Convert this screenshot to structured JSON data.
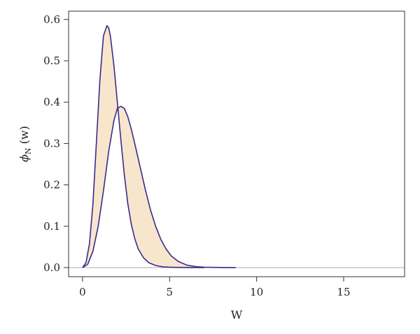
{
  "chart_data": {
    "type": "area",
    "xlabel": "W",
    "ylabel": {
      "main": "ϕ",
      "sub": "N",
      "rest": " (w)"
    },
    "xlim": [
      -0.8,
      18.5
    ],
    "ylim": [
      -0.022,
      0.62
    ],
    "x_ticks": [
      0,
      5,
      10,
      15
    ],
    "y_ticks": [
      0.0,
      0.1,
      0.2,
      0.3,
      0.4,
      0.5,
      0.6
    ],
    "y_tick_labels": [
      "0.0",
      "0.1",
      "0.2",
      "0.3",
      "0.4",
      "0.5",
      "0.6"
    ],
    "baseline": 0,
    "grid": false,
    "colors": {
      "line": "#3b2a8c",
      "fill": "#f8e6cc",
      "baseline": "#bbbbbb",
      "axis": "#333333"
    },
    "series": [
      {
        "x": [
          0,
          0.2,
          0.4,
          0.6,
          0.8,
          1.0,
          1.2,
          1.4,
          1.5,
          1.6,
          1.8,
          2.0,
          2.2,
          2.4,
          2.6,
          2.8,
          3.0,
          3.2,
          3.5,
          3.8,
          4.2,
          4.6,
          5.0,
          5.5,
          6.0,
          7.0
        ],
        "y": [
          0,
          0.012,
          0.058,
          0.155,
          0.305,
          0.455,
          0.56,
          0.585,
          0.58,
          0.56,
          0.49,
          0.4,
          0.31,
          0.225,
          0.155,
          0.105,
          0.07,
          0.045,
          0.024,
          0.012,
          0.005,
          0.002,
          0.001,
          0.0005,
          0.0002,
          0
        ]
      },
      {
        "x": [
          0,
          0.3,
          0.6,
          0.9,
          1.2,
          1.5,
          1.8,
          2.0,
          2.2,
          2.4,
          2.6,
          2.8,
          3.0,
          3.3,
          3.6,
          3.9,
          4.2,
          4.5,
          4.8,
          5.1,
          5.5,
          6.0,
          6.5,
          7.0,
          8.0,
          8.8
        ],
        "y": [
          0,
          0.008,
          0.04,
          0.1,
          0.185,
          0.28,
          0.355,
          0.385,
          0.39,
          0.385,
          0.365,
          0.335,
          0.3,
          0.245,
          0.19,
          0.14,
          0.1,
          0.068,
          0.045,
          0.028,
          0.015,
          0.006,
          0.0025,
          0.001,
          0.0002,
          0
        ]
      }
    ]
  }
}
